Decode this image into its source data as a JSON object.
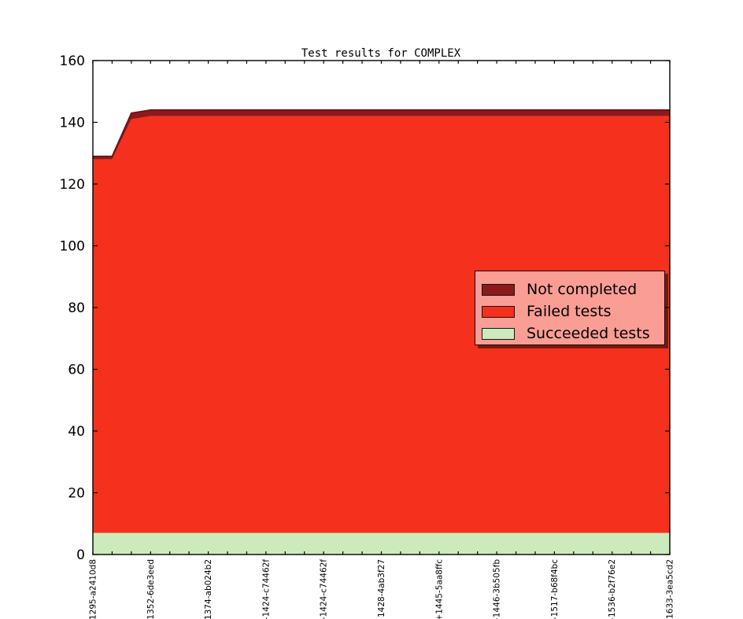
{
  "title": "Test results for COMPLEX",
  "chart_data": {
    "type": "area",
    "stacked": true,
    "title": "Test results for COMPLEX",
    "n_points": 31,
    "ylim": [
      0,
      160
    ],
    "yticks": [
      0,
      20,
      40,
      60,
      80,
      100,
      120,
      140,
      160
    ],
    "x_label_every": 3,
    "x_tick_labels": [
      "1295-a2410d8",
      "1352-6de3eed",
      "1374-ab024b2",
      "-1424-c74462f",
      "-1424-c74462f",
      "1428-4ab3f27",
      "+1445-5aa8ffc",
      "-1446-3b505fb",
      "-1517-b68f4bc",
      "-1536-b2f76e2",
      "1633-3ea5cd2"
    ],
    "grid": false,
    "legend_position": "center right",
    "series": [
      {
        "name": "Succeeded tests",
        "color": "#CBEBBC",
        "values": [
          7,
          7,
          7,
          7,
          7,
          7,
          7,
          7,
          7,
          7,
          7,
          7,
          7,
          7,
          7,
          7,
          7,
          7,
          7,
          7,
          7,
          7,
          7,
          7,
          7,
          7,
          7,
          7,
          7,
          7,
          7
        ]
      },
      {
        "name": "Failed tests",
        "color": "#F5301C",
        "values": [
          121,
          121,
          134,
          135,
          135,
          135,
          135,
          135,
          135,
          135,
          135,
          135,
          135,
          135,
          135,
          135,
          135,
          135,
          135,
          135,
          135,
          135,
          135,
          135,
          135,
          135,
          135,
          135,
          135,
          135,
          135
        ]
      },
      {
        "name": "Not completed",
        "color": "#8C1A1C",
        "values": [
          1,
          1,
          2,
          2,
          2,
          2,
          2,
          2,
          2,
          2,
          2,
          2,
          2,
          2,
          2,
          2,
          2,
          2,
          2,
          2,
          2,
          2,
          2,
          2,
          2,
          2,
          2,
          2,
          2,
          2,
          2
        ]
      }
    ],
    "edge_line_color": "#6B0F12",
    "legend": {
      "entries": [
        {
          "label": "Not completed",
          "color": "#8C1A1C"
        },
        {
          "label": "Failed tests",
          "color": "#F5301C"
        },
        {
          "label": "Succeeded tests",
          "color": "#CBEBBC"
        }
      ]
    }
  }
}
